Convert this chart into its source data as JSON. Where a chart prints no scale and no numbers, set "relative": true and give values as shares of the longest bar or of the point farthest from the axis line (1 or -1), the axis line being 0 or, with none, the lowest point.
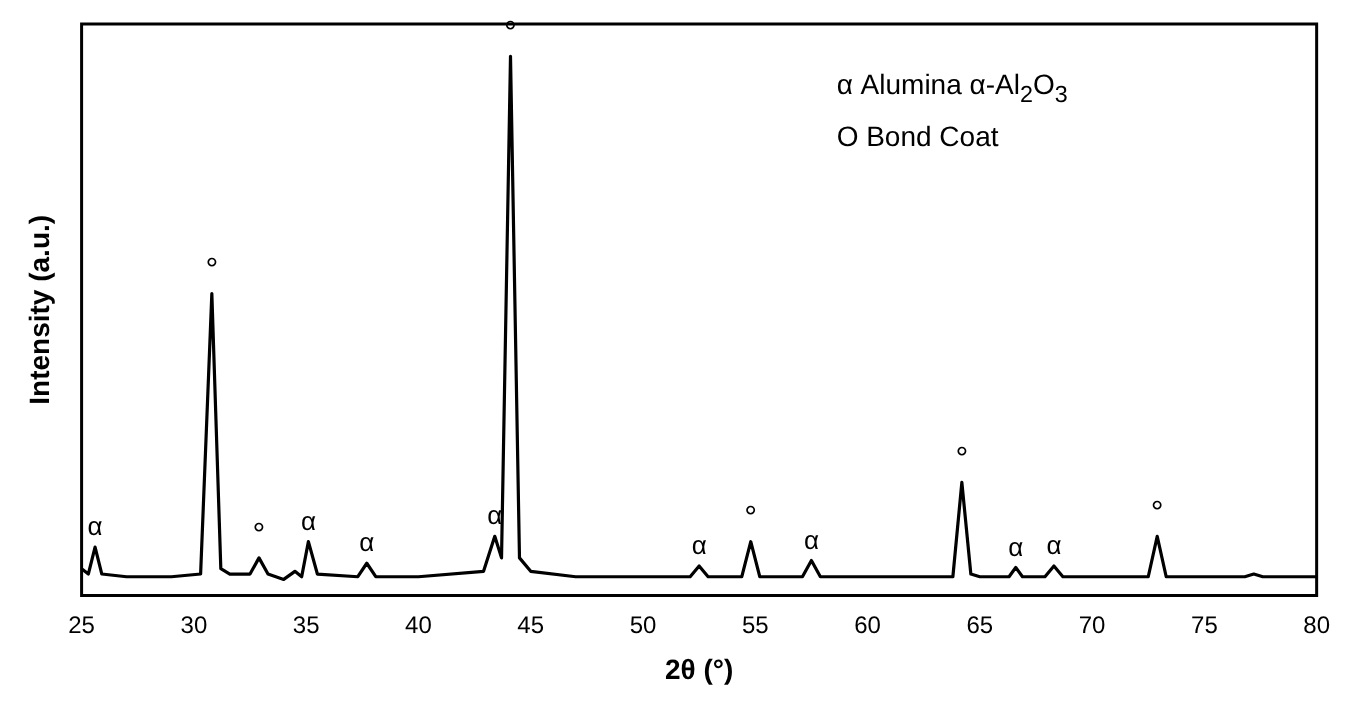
{
  "chart_data": {
    "type": "line",
    "relative": true,
    "xlabel": "2θ (°)",
    "ylabel": "Intensity (a.u.)",
    "xlim": [
      25,
      80
    ],
    "xticks": [
      25,
      30,
      35,
      40,
      45,
      50,
      55,
      60,
      65,
      70,
      75,
      80
    ],
    "legend": false,
    "grid": false,
    "marker": "none",
    "series": [
      {
        "color": "#000000",
        "x": [
          25.0,
          25.3,
          25.6,
          25.9,
          27,
          29,
          30.3,
          30.8,
          31.2,
          31.6,
          32.5,
          32.9,
          33.3,
          34.0,
          34.5,
          34.8,
          35.1,
          35.5,
          37.3,
          37.7,
          38.1,
          40,
          42.9,
          43.4,
          43.7,
          44.1,
          44.5,
          45,
          47,
          50,
          52.1,
          52.5,
          52.9,
          54.4,
          54.8,
          55.2,
          57.1,
          57.5,
          57.9,
          60,
          63.8,
          64.2,
          64.6,
          65,
          66.3,
          66.6,
          66.9,
          67.9,
          68.3,
          68.7,
          72.5,
          72.9,
          73.3,
          76.8,
          77.2,
          77.6,
          80
        ],
        "values": [
          0.05,
          0.04,
          0.09,
          0.04,
          0.035,
          0.035,
          0.04,
          0.56,
          0.05,
          0.04,
          0.04,
          0.07,
          0.04,
          0.03,
          0.045,
          0.035,
          0.1,
          0.04,
          0.035,
          0.06,
          0.035,
          0.035,
          0.045,
          0.11,
          0.07,
          1.0,
          0.07,
          0.045,
          0.035,
          0.035,
          0.035,
          0.055,
          0.035,
          0.035,
          0.1,
          0.035,
          0.035,
          0.065,
          0.035,
          0.035,
          0.035,
          0.21,
          0.04,
          0.035,
          0.035,
          0.052,
          0.035,
          0.035,
          0.055,
          0.035,
          0.035,
          0.11,
          0.035,
          0.035,
          0.04,
          0.035,
          0.035
        ]
      }
    ],
    "annotations": [
      "α  Alumina α-Al$_{2}$O$_{3}$",
      "O  Bond Coat",
      {
        "text": "α",
        "x": 25.6,
        "y": 0.09
      },
      {
        "text": "°",
        "x": 30.8,
        "y": 0.56
      },
      {
        "text": "°",
        "x": 32.9,
        "y": 0.07
      },
      {
        "text": "α",
        "x": 35.1,
        "y": 0.1
      },
      {
        "text": "α",
        "x": 37.7,
        "y": 0.06
      },
      {
        "text": "α",
        "x": 43.4,
        "y": 0.11
      },
      {
        "text": "°",
        "x": 44.1,
        "y": 1.0
      },
      {
        "text": "α",
        "x": 52.5,
        "y": 0.055
      },
      {
        "text": "°",
        "x": 54.8,
        "y": 0.1
      },
      {
        "text": "α",
        "x": 57.5,
        "y": 0.065
      },
      {
        "text": "°",
        "x": 64.2,
        "y": 0.21
      },
      {
        "text": "α",
        "x": 66.6,
        "y": 0.052
      },
      {
        "text": "α",
        "x": 68.3,
        "y": 0.055
      },
      {
        "text": "°",
        "x": 72.9,
        "y": 0.11
      }
    ]
  }
}
